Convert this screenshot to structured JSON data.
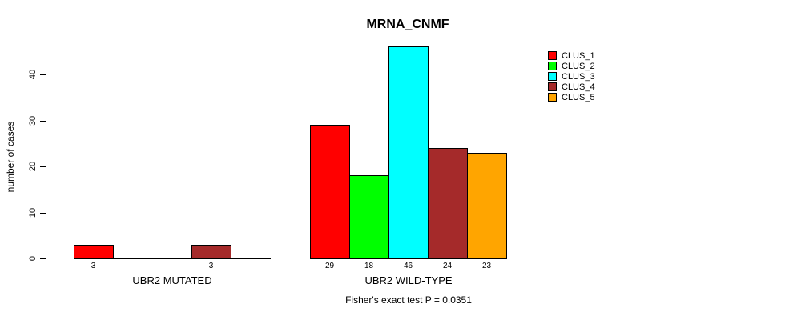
{
  "chart_data": {
    "type": "bar",
    "title": "MRNA_CNMF",
    "ylabel": "number of cases",
    "xlabel": "",
    "ylim": [
      0,
      46
    ],
    "yticks": [
      0,
      10,
      20,
      30,
      40
    ],
    "grid": false,
    "legend_position": "right",
    "background_color": "#FFFFFF",
    "axis_color": "#000000",
    "categories": [
      "UBR2 MUTATED",
      "UBR2 WILD-TYPE"
    ],
    "series": [
      {
        "name": "CLUS_1",
        "color": "#FF0000",
        "values": [
          3,
          29
        ]
      },
      {
        "name": "CLUS_2",
        "color": "#00FF00",
        "values": [
          0,
          18
        ]
      },
      {
        "name": "CLUS_3",
        "color": "#00FFFF",
        "values": [
          0,
          46
        ]
      },
      {
        "name": "CLUS_4",
        "color": "#A52A2A",
        "values": [
          3,
          24
        ]
      },
      {
        "name": "CLUS_5",
        "color": "#FFA500",
        "values": [
          0,
          23
        ]
      }
    ],
    "bar_value_labels": {
      "UBR2 MUTATED": [
        "3",
        "",
        "",
        "3",
        ""
      ],
      "UBR2 WILD-TYPE": [
        "29",
        "18",
        "46",
        "24",
        "23"
      ]
    },
    "annotation": "Fisher's exact test P = 0.0351"
  }
}
